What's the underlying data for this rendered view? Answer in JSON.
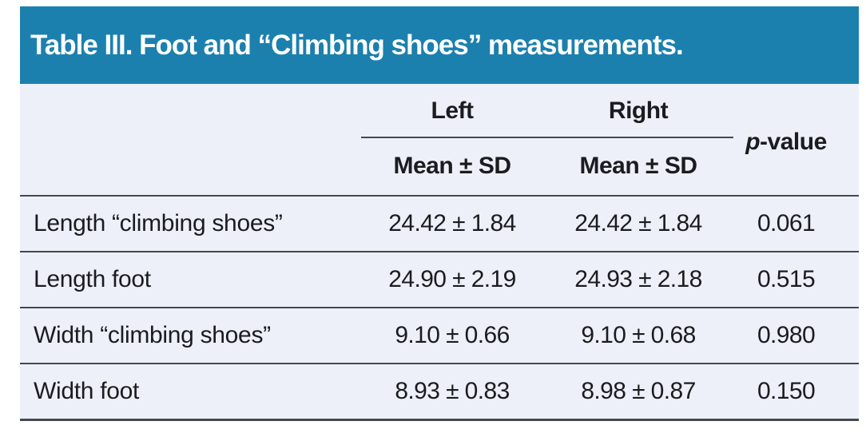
{
  "title": "Table III. Foot and “Climbing shoes” measurements.",
  "header": {
    "left_label": "Left",
    "right_label": "Right",
    "subheader_left": "Mean ± SD",
    "subheader_right": "Mean ± SD",
    "p_italic": "p",
    "p_rest": "-value"
  },
  "rows": [
    {
      "label": "Length “climbing shoes”",
      "left": "24.42 ± 1.84",
      "right": "24.42 ± 1.84",
      "p": "0.061"
    },
    {
      "label": "Length foot",
      "left": "24.90 ± 2.19",
      "right": "24.93 ± 2.18",
      "p": "0.515"
    },
    {
      "label": "Width “climbing shoes”",
      "left": "9.10 ± 0.66",
      "right": "9.10 ± 0.68",
      "p": "0.980"
    },
    {
      "label": "Width foot",
      "left": "8.93 ± 0.83",
      "right": "8.98 ± 0.87",
      "p": "0.150"
    }
  ],
  "colors": {
    "title_bar": "#1b80ae",
    "title_text": "#ffffff",
    "body_background": "#edf0f8",
    "text": "#1a1c1f",
    "rule": "#45494e",
    "page_background": "#ffffff"
  }
}
